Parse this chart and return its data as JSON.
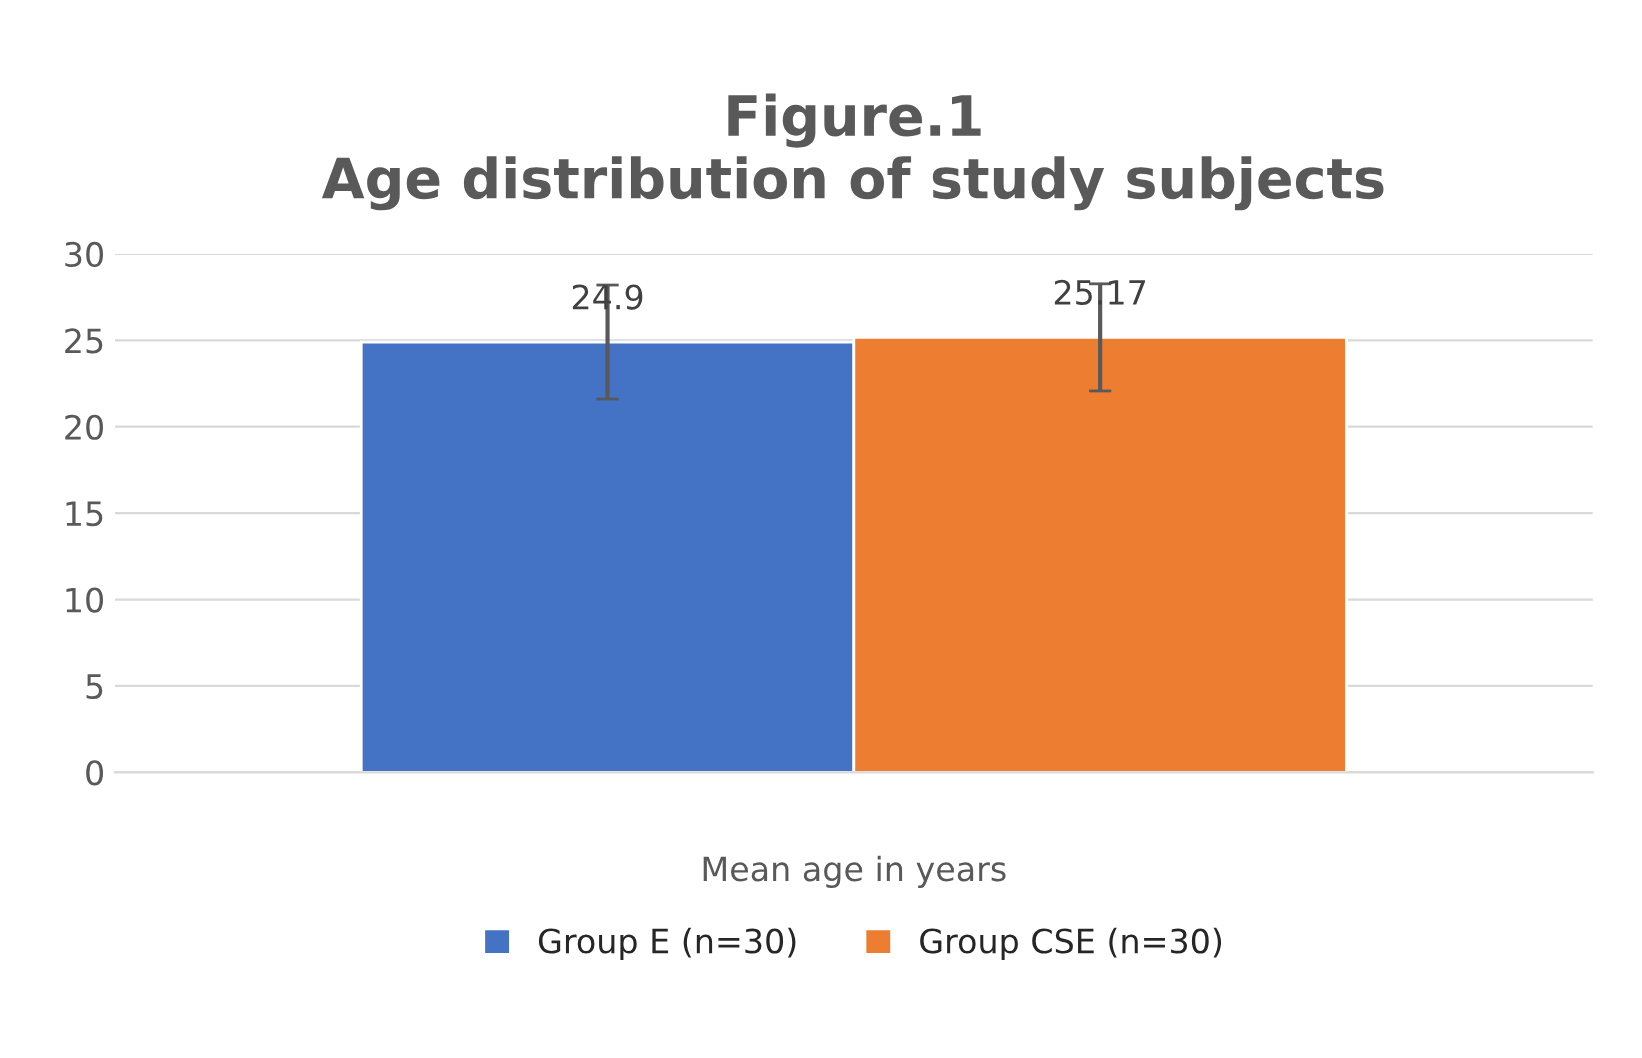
{
  "chart_data": {
    "type": "bar",
    "title": "Figure.1\nAge distribution of study subjects",
    "categories": [
      "Mean age in years"
    ],
    "series": [
      {
        "name": "Group E (n=30)",
        "color": "#4472c4",
        "values": [
          24.9
        ],
        "errors": [
          3.3
        ]
      },
      {
        "name": "Group CSE (n=30)",
        "color": "#ed7d31",
        "values": [
          25.17
        ],
        "errors": [
          3.1
        ]
      }
    ],
    "ylim": [
      0,
      30
    ],
    "yticks": [
      0,
      5,
      10,
      15,
      20,
      25,
      30
    ],
    "grid": "y",
    "legend": "bottom",
    "data_labels": true
  }
}
